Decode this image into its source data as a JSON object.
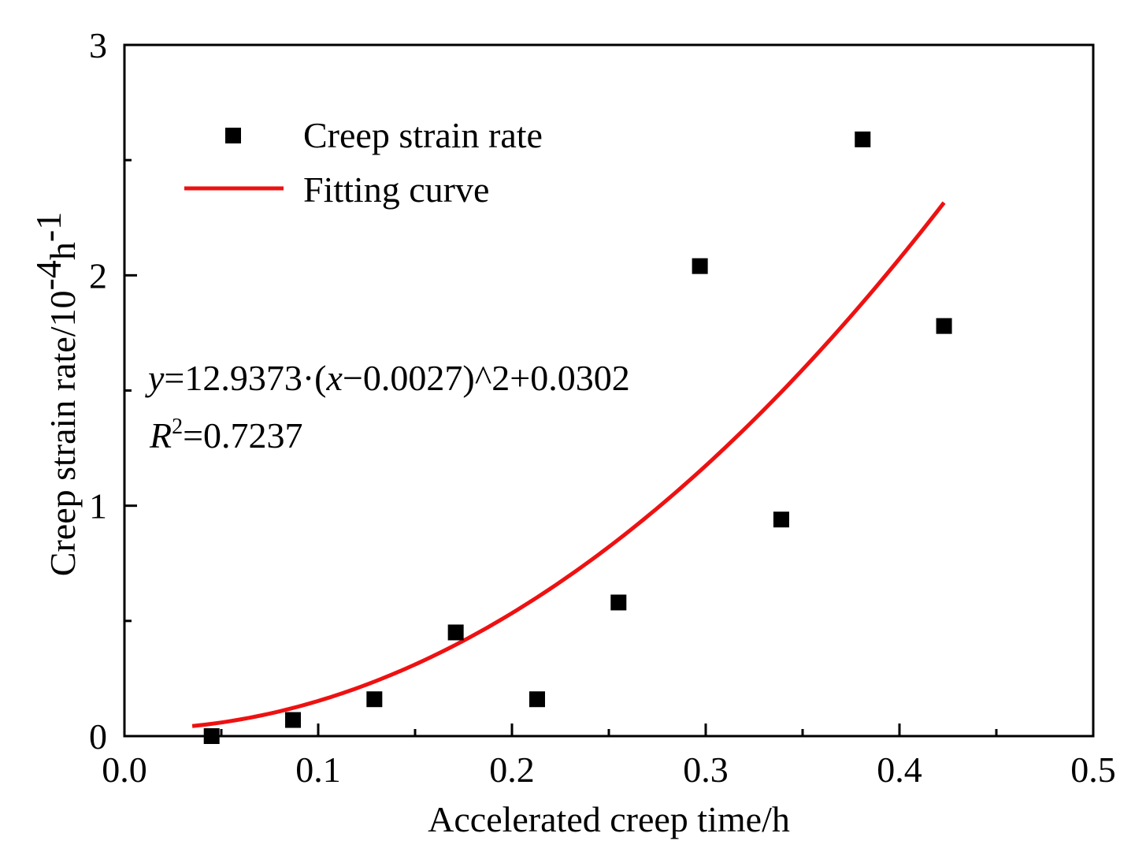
{
  "chart_data": {
    "type": "scatter",
    "xlabel": "Accelerated creep time/h",
    "ylabel": {
      "base": "Creep strain rate/10",
      "exp1": "-4",
      "unit": "h",
      "exp2": "-1"
    },
    "xlim": [
      0.0,
      0.5
    ],
    "ylim": [
      0,
      3
    ],
    "x_ticks": [
      {
        "value": 0.0,
        "label": "0.0"
      },
      {
        "value": 0.1,
        "label": "0.1"
      },
      {
        "value": 0.2,
        "label": "0.2"
      },
      {
        "value": 0.3,
        "label": "0.3"
      },
      {
        "value": 0.4,
        "label": "0.4"
      },
      {
        "value": 0.5,
        "label": "0.5"
      }
    ],
    "y_ticks": [
      {
        "value": 0,
        "label": "0"
      },
      {
        "value": 1,
        "label": "1"
      },
      {
        "value": 2,
        "label": "2"
      },
      {
        "value": 3,
        "label": "3"
      }
    ],
    "series": [
      {
        "name": "Creep strain rate",
        "kind": "scatter",
        "marker": "square",
        "color": "#000000",
        "x": [
          0.045,
          0.087,
          0.129,
          0.171,
          0.213,
          0.255,
          0.297,
          0.339,
          0.381,
          0.423
        ],
        "y": [
          0.0,
          0.07,
          0.16,
          0.45,
          0.16,
          0.58,
          2.04,
          0.94,
          2.59,
          1.78
        ]
      },
      {
        "name": "Fitting curve",
        "kind": "line",
        "color": "#ee1111",
        "equation": {
          "a": 12.9373,
          "h": 0.0027,
          "k": 0.0302
        },
        "x_range": [
          0.035,
          0.423
        ]
      }
    ],
    "annotations": {
      "equation_parts": [
        "y",
        "=12.9373·(",
        "x",
        "−0.0027)^2+0.0302"
      ],
      "r2_parts": [
        "R",
        "2",
        "=0.7237"
      ]
    },
    "legend_position": "top-left",
    "grid": false
  }
}
